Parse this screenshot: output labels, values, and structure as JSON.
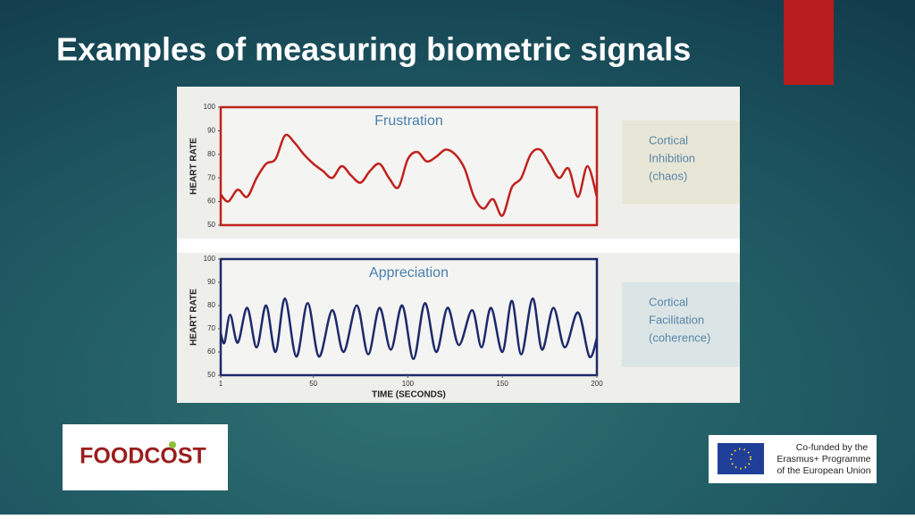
{
  "slide": {
    "title": "Examples of measuring biometric signals",
    "logo": "FOODCOST",
    "eu_text": [
      "Co-funded by the",
      "Erasmus+ Programme",
      "of the European Union"
    ]
  },
  "chart_data": [
    {
      "type": "line",
      "title": "Frustration",
      "ylabel": "HEART RATE",
      "annotation": [
        "Cortical",
        "Inhibition",
        "(chaos)"
      ],
      "xlim": [
        1,
        200
      ],
      "ylim": [
        50,
        100
      ],
      "yticks": [
        50,
        60,
        70,
        80,
        90,
        100
      ],
      "x": [
        1,
        5,
        10,
        15,
        20,
        25,
        30,
        35,
        40,
        45,
        50,
        55,
        60,
        65,
        70,
        75,
        80,
        85,
        90,
        95,
        100,
        105,
        110,
        115,
        120,
        125,
        130,
        135,
        140,
        145,
        150,
        155,
        160,
        165,
        170,
        175,
        180,
        185,
        190,
        195,
        200
      ],
      "series": [
        {
          "name": "Frustration",
          "color": "#c0221d",
          "values": [
            63,
            60,
            65,
            62,
            70,
            76,
            78,
            88,
            85,
            80,
            76,
            73,
            70,
            75,
            71,
            68,
            73,
            76,
            70,
            66,
            78,
            81,
            77,
            79,
            82,
            80,
            74,
            62,
            57,
            61,
            54,
            66,
            70,
            80,
            82,
            76,
            70,
            74,
            62,
            75,
            62
          ]
        }
      ]
    },
    {
      "type": "line",
      "title": "Appreciation",
      "ylabel": "HEART RATE",
      "xlabel": "TIME (SECONDS)",
      "annotation": [
        "Cortical",
        "Facilitation",
        "(coherence)"
      ],
      "xlim": [
        1,
        200
      ],
      "ylim": [
        50,
        100
      ],
      "yticks": [
        50,
        60,
        70,
        80,
        90,
        100
      ],
      "xticks": [
        1,
        50,
        100,
        150,
        200
      ],
      "x": [
        1,
        3,
        6,
        10,
        15,
        20,
        25,
        30,
        35,
        41,
        47,
        53,
        60,
        66,
        73,
        79,
        85,
        91,
        97,
        103,
        109,
        115,
        121,
        127,
        134,
        139,
        144,
        150,
        155,
        160,
        166,
        171,
        177,
        183,
        190,
        196,
        200
      ],
      "series": [
        {
          "name": "Appreciation",
          "color": "#1d2a6b",
          "values": [
            68,
            64,
            76,
            64,
            79,
            62,
            80,
            60,
            83,
            58,
            81,
            58,
            78,
            60,
            80,
            59,
            79,
            61,
            80,
            57,
            81,
            60,
            79,
            63,
            78,
            62,
            79,
            60,
            82,
            59,
            83,
            61,
            79,
            62,
            77,
            58,
            66
          ]
        }
      ]
    }
  ]
}
